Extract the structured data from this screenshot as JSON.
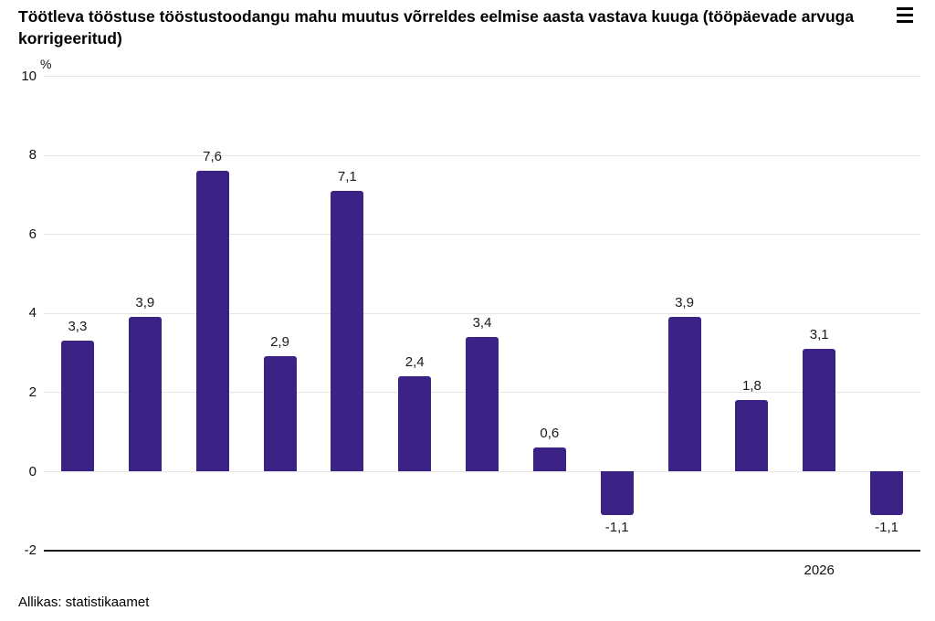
{
  "header": {
    "title": "Töötleva tööstuse tööstustoodangu mahu muutus võrreldes eelmise aasta vastava kuuga (tööpäevade arvuga korrigeeritud)",
    "menu_icon": "hamburger-menu-icon"
  },
  "chart_data": {
    "type": "bar",
    "title": "Töötleva tööstuse tööstustoodangu mahu muutus võrreldes eelmise aasta vastava kuuga (tööpäevade arvuga korrigeeritud)",
    "unit_label": "%",
    "values": [
      3.3,
      3.9,
      7.6,
      2.9,
      7.1,
      2.4,
      3.4,
      0.6,
      -1.1,
      3.9,
      1.8,
      3.1,
      -1.1
    ],
    "value_labels": [
      "3,3",
      "3,9",
      "7,6",
      "2,9",
      "7,1",
      "2,4",
      "3,4",
      "0,6",
      "-1,1",
      "3,9",
      "1,8",
      "3,1",
      "-1,1"
    ],
    "y_ticks": [
      10,
      8,
      6,
      4,
      2,
      0,
      -2
    ],
    "ylim": [
      -2,
      10
    ],
    "x_year_label": "2026",
    "x_year_label_bar_index": 11,
    "bar_color": "#3b2285",
    "grid_color": "#e6e6e6",
    "axis_color": "#1a1a1a",
    "grid": true,
    "legend": false
  },
  "footer": {
    "source": "Allikas: statistikaamet"
  }
}
